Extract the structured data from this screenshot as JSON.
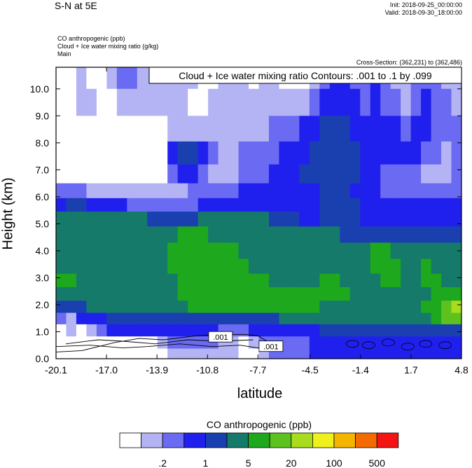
{
  "header": {
    "title": "S-N at 5E",
    "init": "Init: 2018-09-25_00:00:00",
    "valid": "Valid: 2018-09-30_18:00:00",
    "fields": [
      "CO anthropogenic   (ppb)",
      "Cloud + Ice water mixing ratio   (g/kg)",
      "Main"
    ],
    "cross_section": "Cross-Section: (362,231) to (362,486)"
  },
  "chart_data": {
    "type": "heatmap",
    "title": "",
    "xlabel": "latitude",
    "ylabel": "Height (km)",
    "xlim": [
      -20.1,
      4.8
    ],
    "ylim": [
      0.0,
      10.8
    ],
    "x_ticks": [
      "-20.1",
      "-17.0",
      "-13.9",
      "-10.8",
      "-7.7",
      "-4.5",
      "-1.4",
      "1.7",
      "4.8"
    ],
    "x_tick_values": [
      -20.1,
      -17.0,
      -13.9,
      -10.8,
      -7.7,
      -4.5,
      -1.4,
      1.7,
      4.8
    ],
    "y_ticks": [
      "0.0",
      "1.0",
      "2.0",
      "3.0",
      "4.0",
      "5.0",
      "6.0",
      "7.0",
      "8.0",
      "9.0",
      "10.0"
    ],
    "y_tick_values": [
      0,
      1,
      2,
      3,
      4,
      5,
      6,
      7,
      8,
      9,
      10
    ],
    "contour_annotation": "Cloud + Ice water mixing ratio Contours: .001 to .1 by .099",
    "contour_labels": [
      {
        "text": ".001",
        "lat": -10.0,
        "height": 0.8
      },
      {
        "text": ".001",
        "lat": -6.9,
        "height": 0.45
      }
    ],
    "colorbar": {
      "title": "CO anthropogenic  (ppb)",
      "colors": [
        "#ffffff",
        "#b4b4f5",
        "#6a6af2",
        "#2020ee",
        "#1a40b0",
        "#157a6a",
        "#1ea81e",
        "#5ec21e",
        "#aadc1e",
        "#f0f01e",
        "#f5b400",
        "#f56a00",
        "#f51414"
      ],
      "labels": [
        ".2",
        "1",
        "5",
        "20",
        "100",
        "500"
      ],
      "label_after_box": [
        1,
        3,
        5,
        7,
        9,
        11
      ]
    },
    "field_rows": [
      {
        "height": 10.5,
        "values": [
          0,
          0,
          1,
          0,
          0,
          1,
          2,
          2,
          1,
          1,
          1,
          1,
          1,
          1,
          0,
          0,
          1,
          1,
          1,
          0,
          1,
          1,
          0,
          0,
          0,
          1,
          2,
          3,
          3,
          2,
          2,
          3,
          2,
          1,
          1,
          2,
          2,
          2,
          1,
          1
        ]
      },
      {
        "height": 9.5,
        "values": [
          0,
          0,
          1,
          1,
          0,
          0,
          1,
          1,
          1,
          1,
          1,
          1,
          1,
          0,
          0,
          1,
          1,
          1,
          1,
          1,
          1,
          1,
          1,
          1,
          1,
          2,
          3,
          3,
          3,
          3,
          2,
          3,
          2,
          2,
          1,
          2,
          3,
          2,
          2,
          1
        ]
      },
      {
        "height": 8.5,
        "values": [
          0,
          0,
          0,
          0,
          0,
          0,
          0,
          0,
          0,
          0,
          0,
          1,
          1,
          1,
          1,
          1,
          1,
          1,
          1,
          1,
          1,
          2,
          2,
          2,
          3,
          3,
          4,
          4,
          4,
          3,
          3,
          3,
          3,
          3,
          2,
          3,
          3,
          2,
          2,
          2
        ]
      },
      {
        "height": 7.6,
        "values": [
          0,
          0,
          0,
          0,
          0,
          0,
          0,
          0,
          0,
          0,
          0,
          3,
          4,
          4,
          3,
          2,
          1,
          1,
          2,
          2,
          2,
          2,
          3,
          3,
          3,
          4,
          4,
          4,
          4,
          4,
          3,
          3,
          3,
          3,
          3,
          3,
          2,
          2,
          1,
          2
        ]
      },
      {
        "height": 6.8,
        "values": [
          0,
          0,
          0,
          0,
          0,
          0,
          0,
          0,
          0,
          0,
          0,
          2,
          3,
          3,
          2,
          1,
          1,
          1,
          2,
          2,
          2,
          3,
          3,
          3,
          4,
          4,
          4,
          4,
          4,
          4,
          3,
          3,
          2,
          2,
          2,
          2,
          1,
          1,
          1,
          2
        ]
      },
      {
        "height": 6.2,
        "values": [
          2,
          2,
          2,
          1,
          1,
          1,
          1,
          1,
          1,
          1,
          1,
          1,
          1,
          2,
          2,
          2,
          2,
          2,
          3,
          3,
          3,
          3,
          3,
          3,
          3,
          3,
          4,
          4,
          4,
          3,
          3,
          3,
          2,
          2,
          2,
          2,
          2,
          2,
          2,
          2
        ]
      },
      {
        "height": 5.7,
        "values": [
          3,
          4,
          4,
          3,
          3,
          3,
          3,
          2,
          2,
          2,
          2,
          2,
          2,
          2,
          3,
          3,
          3,
          3,
          3,
          3,
          3,
          3,
          3,
          3,
          3,
          3,
          4,
          4,
          4,
          4,
          3,
          3,
          3,
          3,
          3,
          3,
          3,
          3,
          3,
          3
        ]
      },
      {
        "height": 5.2,
        "values": [
          5,
          5,
          5,
          5,
          5,
          5,
          5,
          5,
          5,
          4,
          4,
          4,
          4,
          4,
          5,
          5,
          5,
          5,
          5,
          5,
          5,
          4,
          4,
          4,
          3,
          3,
          4,
          4,
          4,
          4,
          3,
          3,
          3,
          3,
          3,
          3,
          3,
          3,
          3,
          3
        ]
      },
      {
        "height": 4.6,
        "values": [
          5,
          5,
          5,
          5,
          5,
          5,
          5,
          5,
          5,
          5,
          5,
          5,
          6,
          6,
          6,
          5,
          5,
          5,
          5,
          5,
          5,
          5,
          5,
          5,
          5,
          5,
          5,
          5,
          4,
          4,
          4,
          4,
          4,
          4,
          4,
          4,
          4,
          4,
          4,
          4
        ]
      },
      {
        "height": 4.0,
        "values": [
          5,
          5,
          5,
          5,
          5,
          5,
          5,
          5,
          5,
          5,
          5,
          6,
          6,
          6,
          6,
          6,
          6,
          6,
          5,
          5,
          5,
          5,
          5,
          5,
          5,
          5,
          5,
          5,
          5,
          5,
          5,
          6,
          6,
          5,
          5,
          5,
          5,
          5,
          5,
          5
        ]
      },
      {
        "height": 3.4,
        "values": [
          5,
          5,
          5,
          5,
          5,
          5,
          5,
          5,
          5,
          5,
          5,
          6,
          6,
          6,
          6,
          6,
          6,
          6,
          6,
          5,
          5,
          5,
          5,
          5,
          5,
          5,
          5,
          5,
          5,
          5,
          5,
          6,
          6,
          6,
          5,
          5,
          6,
          5,
          5,
          5
        ]
      },
      {
        "height": 2.9,
        "values": [
          6,
          6,
          5,
          5,
          5,
          5,
          5,
          5,
          5,
          5,
          5,
          5,
          6,
          6,
          6,
          6,
          6,
          6,
          6,
          6,
          6,
          5,
          5,
          5,
          5,
          5,
          6,
          6,
          5,
          5,
          5,
          5,
          6,
          6,
          5,
          5,
          6,
          6,
          5,
          5
        ]
      },
      {
        "height": 2.4,
        "values": [
          5,
          5,
          5,
          5,
          5,
          5,
          5,
          5,
          5,
          5,
          5,
          5,
          6,
          6,
          6,
          6,
          6,
          6,
          6,
          6,
          6,
          6,
          6,
          6,
          6,
          6,
          6,
          6,
          6,
          5,
          5,
          5,
          5,
          5,
          5,
          5,
          5,
          6,
          6,
          6
        ]
      },
      {
        "height": 1.9,
        "values": [
          4,
          4,
          4,
          5,
          5,
          5,
          5,
          5,
          5,
          5,
          5,
          5,
          5,
          6,
          6,
          6,
          6,
          6,
          6,
          6,
          6,
          6,
          6,
          6,
          6,
          6,
          5,
          5,
          5,
          5,
          5,
          5,
          5,
          5,
          5,
          5,
          6,
          6,
          7,
          8
        ]
      },
      {
        "height": 1.5,
        "values": [
          2,
          1,
          3,
          3,
          3,
          4,
          4,
          4,
          4,
          4,
          4,
          4,
          4,
          4,
          4,
          4,
          4,
          4,
          4,
          4,
          4,
          4,
          5,
          5,
          5,
          5,
          5,
          5,
          5,
          5,
          5,
          5,
          5,
          5,
          5,
          5,
          5,
          6,
          7,
          7
        ]
      },
      {
        "height": 1.05,
        "values": [
          0,
          1,
          0,
          1,
          2,
          3,
          3,
          3,
          3,
          3,
          3,
          3,
          3,
          3,
          3,
          3,
          2,
          2,
          2,
          3,
          3,
          3,
          3,
          3,
          3,
          3,
          4,
          4,
          4,
          4,
          4,
          4,
          4,
          4,
          4,
          4,
          4,
          4,
          4,
          4
        ]
      },
      {
        "height": 0.6,
        "values": [
          0,
          0,
          0,
          0,
          0,
          0,
          0,
          0,
          0,
          0,
          1,
          2,
          2,
          2,
          2,
          2,
          1,
          1,
          0,
          1,
          2,
          2,
          2,
          2,
          2,
          3,
          3,
          3,
          3,
          3,
          3,
          3,
          3,
          3,
          3,
          3,
          3,
          3,
          3,
          3
        ]
      },
      {
        "height": 0.15,
        "values": [
          0,
          0,
          0,
          0,
          0,
          0,
          0,
          0,
          0,
          0,
          0,
          1,
          1,
          1,
          1,
          1,
          1,
          1,
          0,
          0,
          1,
          2,
          2,
          2,
          2,
          3,
          3,
          3,
          3,
          3,
          3,
          3,
          3,
          3,
          3,
          3,
          3,
          3,
          3,
          3
        ]
      }
    ]
  }
}
